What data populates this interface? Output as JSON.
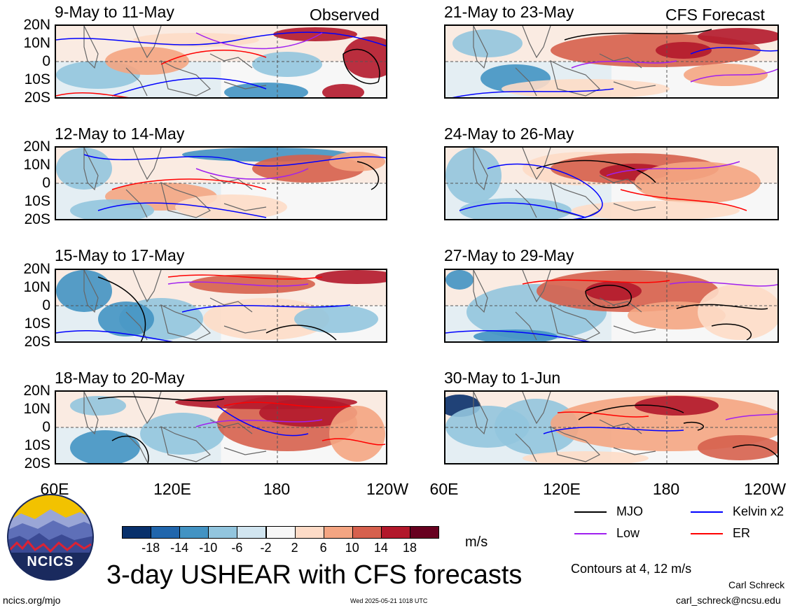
{
  "colors": {
    "mjo": "#000000",
    "kelvin": "#0000ff",
    "low": "#a020f0",
    "er": "#ff0000",
    "levels": [
      "#08306b",
      "#2166ac",
      "#4393c3",
      "#92c5de",
      "#d1e5f0",
      "#f7f7f7",
      "#fddbc7",
      "#f4a582",
      "#d6604d",
      "#b2182b",
      "#67001f"
    ]
  },
  "panels": [
    {
      "title": "9-May to 11-May",
      "tag": "Observed"
    },
    {
      "title": "21-May to 23-May",
      "tag": "CFS Forecast"
    },
    {
      "title": "12-May to 14-May",
      "tag": ""
    },
    {
      "title": "24-May to 26-May",
      "tag": ""
    },
    {
      "title": "15-May to 17-May",
      "tag": ""
    },
    {
      "title": "27-May to 29-May",
      "tag": ""
    },
    {
      "title": "18-May to 20-May",
      "tag": ""
    },
    {
      "title": "30-May to 1-Jun",
      "tag": ""
    }
  ],
  "chart_data": {
    "type": "heatmap",
    "title": "3-day USHEAR with CFS forecasts",
    "units": "m/s",
    "x_ticks": [
      "60E",
      "120E",
      "180",
      "120W"
    ],
    "y_ticks": [
      "20N",
      "10N",
      "0",
      "10S",
      "20S"
    ],
    "xlim": [
      "60E",
      "120W"
    ],
    "ylim": [
      "20S",
      "20N"
    ],
    "colorbar_levels": [
      -18,
      -14,
      -10,
      -6,
      -2,
      2,
      6,
      10,
      14,
      18
    ],
    "contour_note": "Contours at 4, 12 m/s",
    "legend": [
      "MJO",
      "Kelvin x2",
      "Low",
      "ER"
    ]
  },
  "footer": {
    "logo_text": "NCICS",
    "url": "ncics.org/mjo",
    "timestamp": "Wed 2025-05-21 1018 UTC",
    "author": "Carl Schreck",
    "email": "carl_schreck@ncsu.edu"
  }
}
